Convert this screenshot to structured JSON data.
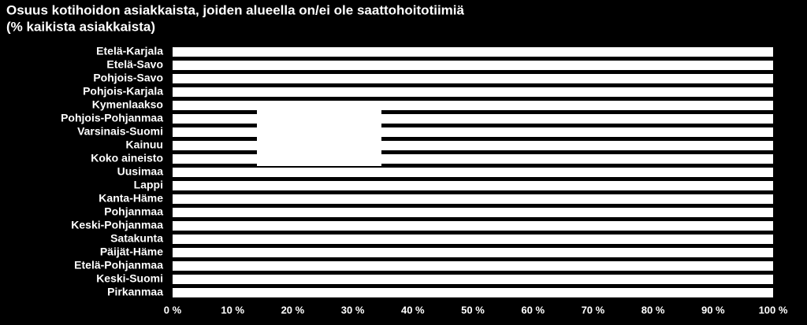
{
  "chart_data": {
    "type": "bar",
    "orientation": "horizontal",
    "title": "Osuus kotihoidon asiakkaista, joiden alueella on/ei ole saattohoitotiimiä",
    "subtitle": "(% kaikista asiakkaista)",
    "categories": [
      "Etelä-Karjala",
      "Etelä-Savo",
      "Pohjois-Savo",
      "Pohjois-Karjala",
      "Kymenlaakso",
      "Pohjois-Pohjanmaa",
      "Varsinais-Suomi",
      "Kainuu",
      "Koko aineisto",
      "Uusimaa",
      "Lappi",
      "Kanta-Häme",
      "Pohjanmaa",
      "Keski-Pohjanmaa",
      "Satakunta",
      "Päijät-Häme",
      "Etelä-Pohjanmaa",
      "Keski-Suomi",
      "Pirkanmaa"
    ],
    "values": [
      100,
      100,
      100,
      100,
      100,
      100,
      100,
      100,
      100,
      100,
      100,
      100,
      100,
      100,
      100,
      100,
      100,
      100,
      100
    ],
    "color": "#ffffff",
    "xlim": [
      0,
      100
    ],
    "xticks": [
      {
        "value": 0,
        "label": "0 %"
      },
      {
        "value": 10,
        "label": "10 %"
      },
      {
        "value": 20,
        "label": "20 %"
      },
      {
        "value": 30,
        "label": "30 %"
      },
      {
        "value": 40,
        "label": "40 %"
      },
      {
        "value": 50,
        "label": "50 %"
      },
      {
        "value": 60,
        "label": "60 %"
      },
      {
        "value": 70,
        "label": "70 %"
      },
      {
        "value": 80,
        "label": "80 %"
      },
      {
        "value": 90,
        "label": "90 %"
      },
      {
        "value": 100,
        "label": "100 %"
      }
    ]
  }
}
